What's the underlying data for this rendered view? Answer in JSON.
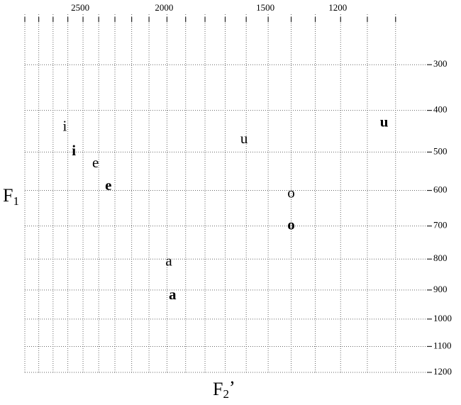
{
  "chart_data": {
    "type": "scatter",
    "xscale": "mel",
    "yscale": "mel",
    "xlabel": {
      "text": "F",
      "sub": "2",
      "suffix": "’"
    },
    "ylabel": {
      "text": "F",
      "sub": "1"
    },
    "xlim": [
      2900,
      900
    ],
    "ylim": [
      200,
      1200
    ],
    "xticks": [
      2500,
      2000,
      1500,
      1200
    ],
    "xgrid": [
      2900,
      2800,
      2700,
      2600,
      2500,
      2400,
      2300,
      2200,
      2100,
      2000,
      1900,
      1800,
      1700,
      1600,
      1500,
      1400,
      1300,
      1200,
      1100,
      1000
    ],
    "yticks": [
      300,
      400,
      500,
      600,
      700,
      800,
      900,
      1000,
      1100,
      1200
    ],
    "series": [
      {
        "color": "#111111",
        "labels": [
          "i",
          "e",
          "a",
          "u",
          "o"
        ],
        "x": [
          2620,
          2420,
          1990,
          1610,
          1400
        ],
        "y": [
          440,
          530,
          810,
          470,
          610
        ]
      },
      {
        "color": "#c0281e",
        "labels": [
          "i",
          "e",
          "a",
          "u",
          "o"
        ],
        "x": [
          2560,
          2340,
          1970,
          1040,
          1400
        ],
        "y": [
          500,
          590,
          920,
          430,
          700
        ]
      }
    ]
  }
}
